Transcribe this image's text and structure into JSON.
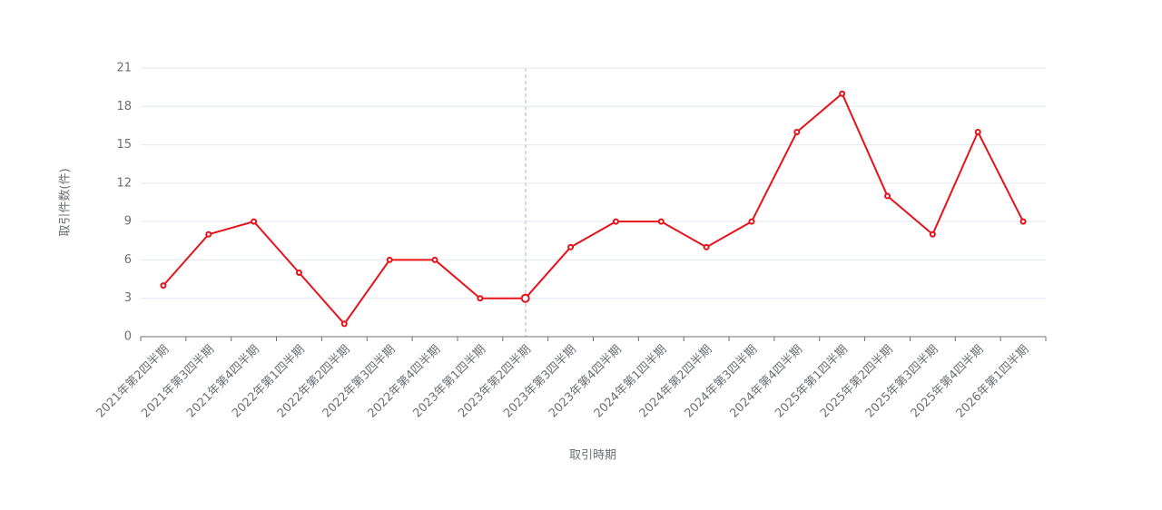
{
  "chart_data": {
    "type": "line",
    "x_label": "取引時期",
    "y_label": "取引件数(件)",
    "categories": [
      "2021年第2四半期",
      "2021年第3四半期",
      "2021年第4四半期",
      "2022年第1四半期",
      "2022年第2四半期",
      "2022年第3四半期",
      "2022年第4四半期",
      "2023年第1四半期",
      "2023年第2四半期",
      "2023年第3四半期",
      "2023年第4四半期",
      "2024年第1四半期",
      "2024年第2四半期",
      "2024年第3四半期",
      "2024年第4四半期",
      "2025年第1四半期",
      "2025年第2四半期",
      "2025年第3四半期",
      "2025年第4四半期",
      "2026年第1四半期"
    ],
    "values": [
      4,
      8,
      9,
      5,
      1,
      6,
      6,
      3,
      3,
      7,
      9,
      9,
      7,
      9,
      16,
      19,
      11,
      8,
      16,
      9
    ],
    "color": "#e6121a",
    "ylim": [
      0,
      21
    ],
    "yticks": [
      0,
      3,
      6,
      9,
      12,
      15,
      18,
      21
    ],
    "grid": true
  }
}
